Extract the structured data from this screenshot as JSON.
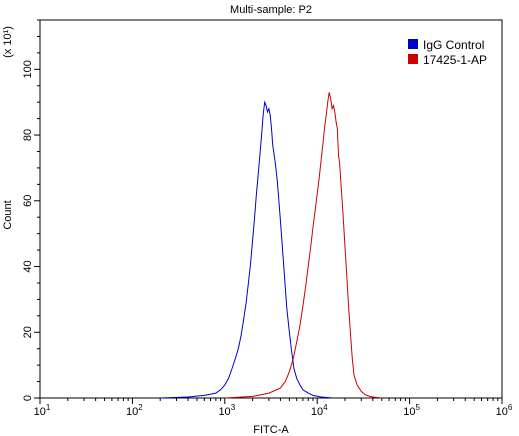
{
  "chart_data": {
    "type": "line",
    "title": "Multi-sample: P2",
    "xlabel": "FITC-A",
    "ylabel": "Count",
    "y_multiplier_label": "(x 10¹)",
    "x_scale": "log",
    "xlim": [
      10,
      1000000
    ],
    "ylim": [
      0,
      115
    ],
    "grid": false,
    "legend_position": "top-right",
    "x_ticks": [
      {
        "value": 10,
        "base": "10",
        "exp": "1"
      },
      {
        "value": 100,
        "base": "10",
        "exp": "2"
      },
      {
        "value": 1000,
        "base": "10",
        "exp": "3"
      },
      {
        "value": 10000,
        "base": "10",
        "exp": "4"
      },
      {
        "value": 100000,
        "base": "10",
        "exp": "5"
      },
      {
        "value": 1000000,
        "base": "10",
        "exp": "6"
      }
    ],
    "y_ticks": [
      0,
      20,
      40,
      60,
      80,
      100
    ],
    "series": [
      {
        "name": "IgG Control",
        "color": "#0000cc",
        "x": [
          200,
          400,
          600,
          800,
          900,
          1000,
          1100,
          1200,
          1300,
          1400,
          1500,
          1600,
          1700,
          1800,
          1900,
          2000,
          2100,
          2200,
          2300,
          2400,
          2500,
          2600,
          2700,
          2800,
          2900,
          3000,
          3100,
          3200,
          3300,
          3500,
          3700,
          3900,
          4100,
          4300,
          4500,
          4700,
          5000,
          5300,
          5600,
          6000,
          6500,
          7000,
          8000,
          9000,
          11000,
          15000
        ],
        "y": [
          0,
          0.3,
          0.8,
          1.5,
          2.5,
          4,
          6,
          9,
          12,
          15,
          19,
          24,
          29,
          35,
          41,
          48,
          55,
          62,
          68,
          74,
          80,
          86,
          90,
          89,
          87,
          88,
          86,
          82,
          77,
          72,
          66,
          58,
          50,
          42,
          34,
          27,
          20,
          14,
          9,
          6,
          4,
          2.5,
          1.5,
          0.8,
          0.3,
          0
        ]
      },
      {
        "name": "17425-1-AP",
        "color": "#cc0000",
        "x": [
          1000,
          2000,
          3000,
          4000,
          4500,
          5000,
          5500,
          6000,
          6500,
          7000,
          7500,
          8000,
          8500,
          9000,
          9500,
          10000,
          10500,
          11000,
          11500,
          12000,
          12500,
          13000,
          13500,
          14000,
          14500,
          15000,
          15500,
          16000,
          16500,
          17000,
          17500,
          18000,
          19000,
          20000,
          21000,
          22000,
          23000,
          24000,
          25000,
          27000,
          30000,
          33000,
          37000,
          42000,
          50000
        ],
        "y": [
          0,
          0.5,
          1.5,
          3,
          5,
          8,
          12,
          17,
          22,
          28,
          34,
          40,
          46,
          52,
          57,
          62,
          67,
          72,
          77,
          82,
          86,
          90,
          93,
          91,
          88,
          89,
          87,
          84,
          82,
          74,
          71,
          66,
          56,
          46,
          36,
          27,
          19,
          12,
          7,
          4,
          2,
          1,
          0.5,
          0.2,
          0
        ]
      }
    ]
  }
}
